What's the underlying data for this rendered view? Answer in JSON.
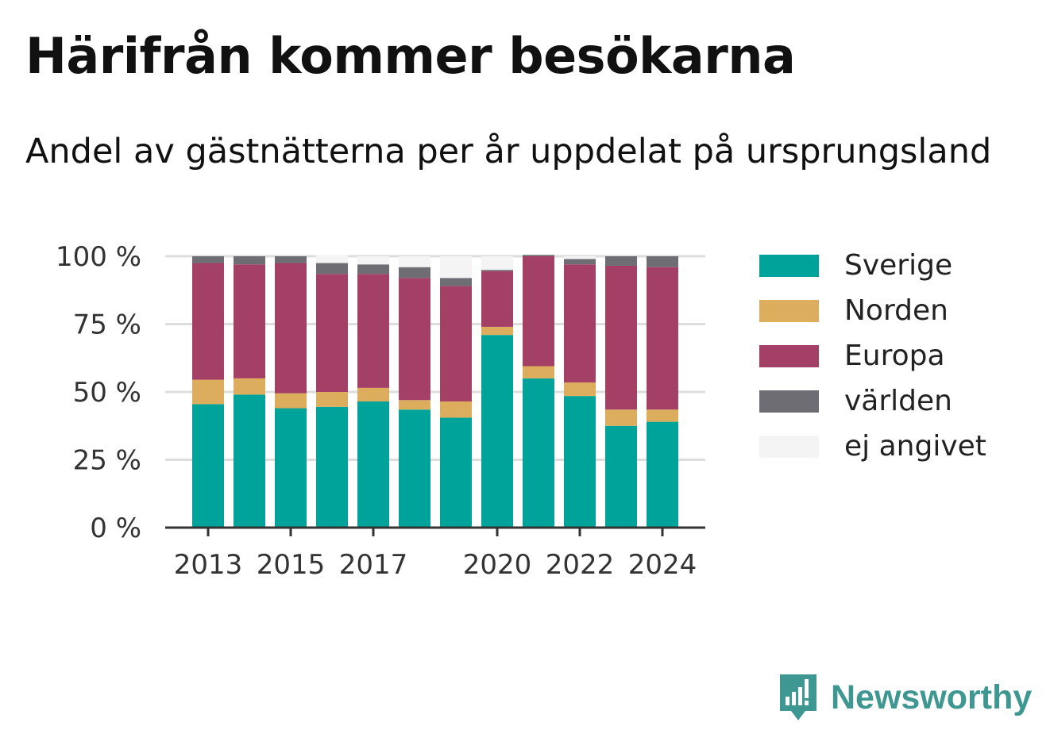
{
  "header": {
    "title": "Härifrån kommer besökarna",
    "subtitle": "Andel av gästnätterna per år uppdelat på ursprungsland"
  },
  "branding": {
    "name": "Newsworthy",
    "icon": "bar-chart-speech-icon",
    "color": "#3f9791"
  },
  "chart_data": {
    "type": "bar",
    "stacked": true,
    "categories": [
      "2013",
      "2014",
      "2015",
      "2016",
      "2017",
      "2018",
      "2019",
      "2020",
      "2021",
      "2022",
      "2023",
      "2024"
    ],
    "x_tick_labels": [
      "2013",
      "",
      "2015",
      "",
      "2017",
      "",
      "",
      "2020",
      "",
      "2022",
      "",
      "2024"
    ],
    "y_ticks": [
      {
        "value": 0,
        "label": "0 %"
      },
      {
        "value": 25,
        "label": "25 %"
      },
      {
        "value": 50,
        "label": "50 %"
      },
      {
        "value": 75,
        "label": "75 %"
      },
      {
        "value": 100,
        "label": "100 %"
      }
    ],
    "ylim": [
      0,
      100
    ],
    "grid": true,
    "legend_position": "right",
    "series": [
      {
        "name": "Sverige",
        "color": "#00a39a",
        "values": [
          45.5,
          49,
          44,
          44.5,
          46.5,
          43.5,
          40.5,
          71,
          55,
          48.5,
          37.5,
          39
        ]
      },
      {
        "name": "Norden",
        "color": "#dbad5c",
        "values": [
          9,
          6,
          5.5,
          5.5,
          5,
          3.5,
          6,
          3,
          4.5,
          5,
          6,
          4.5
        ]
      },
      {
        "name": "Europa",
        "color": "#a43f66",
        "values": [
          43,
          42,
          48,
          43.5,
          42,
          45,
          42.5,
          20.5,
          40.5,
          43.5,
          53,
          52.5
        ]
      },
      {
        "name": "världen",
        "color": "#6e6d74",
        "values": [
          2.5,
          3,
          2.5,
          4,
          3.5,
          4,
          3,
          0.5,
          0.5,
          2,
          3.5,
          4
        ]
      },
      {
        "name": "ej angivet",
        "color": "#f4f4f4",
        "values": [
          0,
          0,
          0,
          3,
          3,
          4,
          8,
          5,
          0,
          1,
          0,
          0
        ]
      }
    ]
  }
}
